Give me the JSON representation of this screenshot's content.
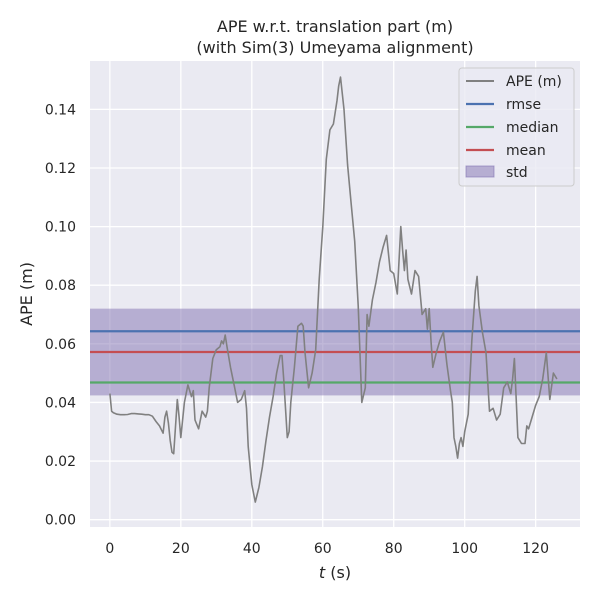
{
  "chart_data": {
    "type": "line",
    "title_line1": "APE w.r.t. translation part (m)",
    "title_line2": "(with Sim(3) Umeyama alignment)",
    "xlabel_var": "t",
    "xlabel_unit": " (s)",
    "ylabel": "APE (m)",
    "xlim": [
      -5.6,
      132.5
    ],
    "ylim": [
      -0.0025,
      0.1565
    ],
    "x_ticks": [
      0,
      20,
      40,
      60,
      80,
      100,
      120
    ],
    "y_ticks": [
      0.0,
      0.02,
      0.04,
      0.06,
      0.08,
      0.1,
      0.12,
      0.14
    ],
    "grid": true,
    "legend_position": "top-right",
    "legend": [
      "APE (m)",
      "rmse",
      "median",
      "mean",
      "std"
    ],
    "stats": {
      "rmse": 0.0643,
      "median": 0.0468,
      "mean": 0.0572,
      "std_low": 0.0424,
      "std_high": 0.072
    },
    "colors": {
      "ape": "#808080",
      "rmse": "#4c72b0",
      "median": "#55a868",
      "mean": "#c44e52",
      "std": "#8172b2",
      "background": "#eaeaf2",
      "grid": "#ffffff"
    },
    "series": [
      {
        "name": "APE (m)",
        "x": [
          0,
          0.5,
          1,
          2,
          3,
          4,
          5,
          6,
          7,
          8,
          9,
          10,
          11,
          12,
          13,
          14,
          15,
          15.5,
          16,
          16.5,
          17,
          17.5,
          18,
          19,
          19.5,
          20,
          21,
          22,
          23,
          23.5,
          24,
          25,
          26,
          27,
          27.5,
          28,
          29,
          30,
          31,
          31.5,
          32,
          32.5,
          33,
          34,
          35,
          36,
          37,
          38,
          38.5,
          39,
          40,
          41,
          42,
          43,
          44,
          45,
          46,
          47,
          48,
          48.5,
          49,
          50,
          50.5,
          51,
          52,
          53,
          54,
          54.5,
          55,
          56,
          57,
          58,
          59,
          60,
          61,
          62,
          63,
          64,
          64.5,
          65,
          66,
          67,
          68,
          69,
          70,
          71,
          72,
          72.5,
          73,
          74,
          75,
          76,
          77,
          78,
          78.5,
          79,
          80,
          81,
          82,
          82.5,
          83,
          83.5,
          84,
          85,
          86,
          87,
          88,
          89,
          89.5,
          90,
          90.5,
          91,
          92,
          93,
          94,
          95,
          96,
          96.5,
          97,
          97.5,
          98,
          98.5,
          99,
          99.5,
          100,
          101,
          102,
          103,
          103.5,
          104,
          105,
          106,
          107,
          108,
          109,
          110,
          111,
          112,
          113,
          113.5,
          114,
          115,
          116,
          117,
          117.5,
          118,
          119,
          120,
          121,
          122,
          123,
          124,
          125,
          126
        ],
        "y": [
          0.043,
          0.037,
          0.0365,
          0.036,
          0.0358,
          0.0358,
          0.0359,
          0.0362,
          0.0362,
          0.0361,
          0.036,
          0.0358,
          0.0358,
          0.0353,
          0.0335,
          0.032,
          0.0295,
          0.035,
          0.037,
          0.033,
          0.027,
          0.023,
          0.0225,
          0.041,
          0.035,
          0.028,
          0.04,
          0.046,
          0.042,
          0.044,
          0.034,
          0.031,
          0.037,
          0.035,
          0.037,
          0.045,
          0.055,
          0.058,
          0.059,
          0.061,
          0.06,
          0.063,
          0.059,
          0.052,
          0.046,
          0.04,
          0.041,
          0.044,
          0.038,
          0.025,
          0.012,
          0.006,
          0.011,
          0.018,
          0.027,
          0.035,
          0.042,
          0.05,
          0.056,
          0.056,
          0.048,
          0.028,
          0.03,
          0.04,
          0.052,
          0.066,
          0.067,
          0.066,
          0.057,
          0.045,
          0.05,
          0.058,
          0.082,
          0.1,
          0.123,
          0.133,
          0.135,
          0.143,
          0.148,
          0.151,
          0.14,
          0.121,
          0.108,
          0.095,
          0.073,
          0.04,
          0.045,
          0.07,
          0.066,
          0.075,
          0.081,
          0.088,
          0.093,
          0.097,
          0.091,
          0.085,
          0.084,
          0.077,
          0.1,
          0.092,
          0.085,
          0.092,
          0.082,
          0.077,
          0.085,
          0.083,
          0.07,
          0.072,
          0.065,
          0.072,
          0.061,
          0.052,
          0.057,
          0.061,
          0.064,
          0.053,
          0.044,
          0.04,
          0.028,
          0.025,
          0.021,
          0.026,
          0.028,
          0.025,
          0.03,
          0.036,
          0.061,
          0.078,
          0.083,
          0.073,
          0.064,
          0.057,
          0.037,
          0.038,
          0.034,
          0.036,
          0.045,
          0.047,
          0.043,
          0.048,
          0.055,
          0.028,
          0.026,
          0.026,
          0.032,
          0.031,
          0.035,
          0.039,
          0.042,
          0.048,
          0.057,
          0.041,
          0.05,
          0.048
        ]
      }
    ]
  }
}
